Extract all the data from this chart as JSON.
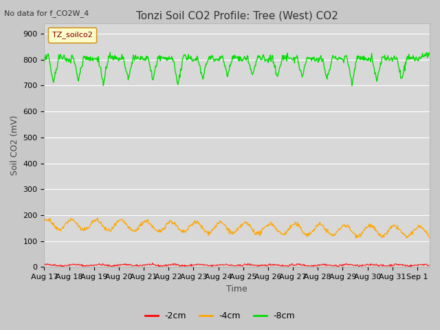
{
  "title": "Tonzi Soil CO2 Profile: Tree (West) CO2",
  "no_data_text": "No data for f_CO2W_4",
  "xlabel": "Time",
  "ylabel": "Soil CO2 (mV)",
  "ylim": [
    0,
    940
  ],
  "yticks": [
    0,
    100,
    200,
    300,
    400,
    500,
    600,
    700,
    800,
    900
  ],
  "xtick_labels": [
    "Aug 17",
    "Aug 18",
    "Aug 19",
    "Aug 20",
    "Aug 21",
    "Aug 22",
    "Aug 23",
    "Aug 24",
    "Aug 25",
    "Aug 26",
    "Aug 27",
    "Aug 28",
    "Aug 29",
    "Aug 30",
    "Aug 31",
    "Sep 1"
  ],
  "legend_label": "TZ_soilco2",
  "legend_facecolor": "#ffffcc",
  "legend_edgecolor": "#cc8800",
  "series": [
    {
      "label": "-2cm",
      "color": "#ff0000"
    },
    {
      "label": "-4cm",
      "color": "#ffa500"
    },
    {
      "label": "-8cm",
      "color": "#00dd00"
    }
  ],
  "fig_facecolor": "#c8c8c8",
  "axes_facecolor": "#d8d8d8",
  "grid_color": "#ffffff",
  "title_fontsize": 11,
  "axis_label_fontsize": 9,
  "tick_fontsize": 8
}
